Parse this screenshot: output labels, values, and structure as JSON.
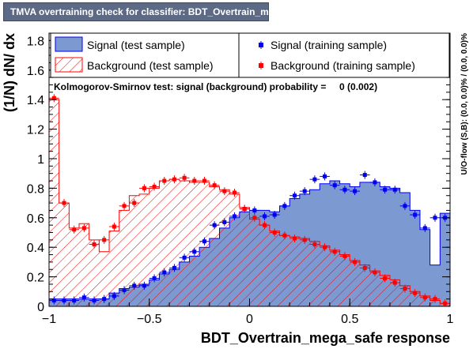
{
  "window": {
    "title": "TMVA overtraining check for classifier: BDT_Overtrain_mega_safe"
  },
  "colors": {
    "signal_fill": "#7d99d1",
    "signal_line": "#0000ee",
    "signal_marker": "#0000ee",
    "background_line": "#ff0000",
    "background_marker": "#ff0000",
    "title_bar": "#5c6a85"
  },
  "ks_text": "Kolmogorov-Smirnov test: signal (background) probability =     0 (0.002)",
  "side_text": "U/O-flow (S,B): (0.0, 0.0)% / (0.0, 0.0)%",
  "chart_data": {
    "type": "histogram",
    "xlabel": "BDT_Overtrain_mega_safe response",
    "ylabel": "(1/N) dN/ dx",
    "xlim": [
      -1,
      1
    ],
    "ylim": [
      0,
      1.85
    ],
    "x_ticks": [
      -1,
      -0.5,
      0,
      0.5,
      1
    ],
    "x_tick_labels": [
      "−1",
      "−0.5",
      "0",
      "0.5",
      "1"
    ],
    "y_ticks": [
      0,
      0.2,
      0.4,
      0.6,
      0.8,
      1,
      1.2,
      1.4,
      1.6,
      1.8
    ],
    "y_tick_labels": [
      "0",
      "0.2",
      "0.4",
      "0.6",
      "0.8",
      "1",
      "1.2",
      "1.4",
      "1.6",
      "1.8"
    ],
    "bin_edges": [
      -1.0,
      -0.95,
      -0.9,
      -0.85,
      -0.8,
      -0.75,
      -0.7,
      -0.65,
      -0.6,
      -0.55,
      -0.5,
      -0.45,
      -0.4,
      -0.35,
      -0.3,
      -0.25,
      -0.2,
      -0.15,
      -0.1,
      -0.05,
      0.0,
      0.05,
      0.1,
      0.15,
      0.2,
      0.25,
      0.3,
      0.35,
      0.4,
      0.45,
      0.5,
      0.55,
      0.6,
      0.65,
      0.7,
      0.75,
      0.8,
      0.85,
      0.9,
      0.95,
      1.0
    ],
    "legend": {
      "signal_test": "Signal (test sample)",
      "background_test": "Background (test sample)",
      "signal_train": "Signal (training sample)",
      "background_train": "Background (training sample)"
    },
    "series": [
      {
        "name": "Signal (test sample)",
        "style": "filled-histogram",
        "values": [
          0.05,
          0.05,
          0.05,
          0.05,
          0.05,
          0.05,
          0.09,
          0.12,
          0.13,
          0.15,
          0.18,
          0.22,
          0.25,
          0.3,
          0.34,
          0.4,
          0.46,
          0.53,
          0.6,
          0.64,
          0.65,
          0.65,
          0.64,
          0.68,
          0.73,
          0.76,
          0.79,
          0.83,
          0.85,
          0.83,
          0.81,
          0.84,
          0.84,
          0.81,
          0.8,
          0.77,
          0.65,
          0.52,
          0.28,
          0.63
        ]
      },
      {
        "name": "Background (test sample)",
        "style": "hatched-histogram",
        "values": [
          1.4,
          0.7,
          0.53,
          0.56,
          0.45,
          0.37,
          0.51,
          0.65,
          0.75,
          0.76,
          0.8,
          0.85,
          0.86,
          0.85,
          0.84,
          0.84,
          0.81,
          0.79,
          0.76,
          0.67,
          0.59,
          0.55,
          0.51,
          0.48,
          0.47,
          0.46,
          0.44,
          0.41,
          0.38,
          0.35,
          0.31,
          0.28,
          0.24,
          0.21,
          0.18,
          0.14,
          0.1,
          0.07,
          0.04,
          0.02
        ]
      },
      {
        "name": "Signal (training sample)",
        "style": "markers",
        "values": [
          0.04,
          0.04,
          0.04,
          0.06,
          0.04,
          0.05,
          0.07,
          0.11,
          0.14,
          0.14,
          0.19,
          0.23,
          0.26,
          0.33,
          0.37,
          0.44,
          0.55,
          0.57,
          0.61,
          0.66,
          0.65,
          0.61,
          0.62,
          0.68,
          0.75,
          0.78,
          0.86,
          0.88,
          0.82,
          0.79,
          0.78,
          0.89,
          0.84,
          0.79,
          0.79,
          0.68,
          0.62,
          0.53,
          0.6,
          0.6
        ]
      },
      {
        "name": "Background (training sample)",
        "style": "markers",
        "values": [
          1.41,
          0.7,
          0.52,
          0.53,
          0.42,
          0.45,
          0.54,
          0.68,
          0.7,
          0.8,
          0.81,
          0.85,
          0.86,
          0.87,
          0.85,
          0.85,
          0.82,
          0.78,
          0.77,
          0.66,
          0.6,
          0.55,
          0.5,
          0.48,
          0.46,
          0.45,
          0.42,
          0.4,
          0.37,
          0.34,
          0.3,
          0.26,
          0.23,
          0.19,
          0.16,
          0.12,
          0.09,
          0.06,
          0.05,
          0.02
        ]
      }
    ]
  }
}
